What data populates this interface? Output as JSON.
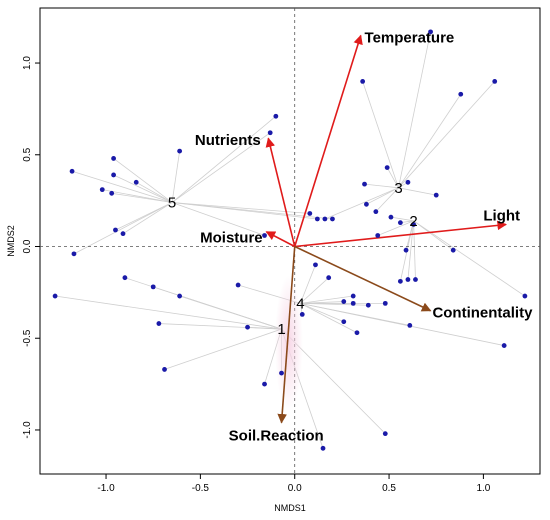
{
  "chart_data": {
    "type": "scatter",
    "title": "",
    "xlabel": "NMDS1",
    "ylabel": "NMDS2",
    "xlim": [
      -1.35,
      1.3
    ],
    "ylim": [
      -1.24,
      1.3
    ],
    "xticks": [
      -1.0,
      -0.5,
      0.0,
      0.5,
      1.0
    ],
    "xtick_labels": [
      "-1.0",
      "-0.5",
      "0.0",
      "0.5",
      "1.0"
    ],
    "yticks": [
      -1.0,
      -0.5,
      0.0,
      0.5,
      1.0
    ],
    "ytick_labels": [
      "-1.0",
      "-0.5",
      "0.0",
      "0.5",
      "1.0"
    ],
    "grid": false,
    "zero_lines": true,
    "point_color": "#1a1aa8",
    "spider_color": "#cfcfcf",
    "centroids": [
      {
        "label": "1",
        "x": -0.07,
        "y": -0.45
      },
      {
        "label": "2",
        "x": 0.63,
        "y": 0.14
      },
      {
        "label": "3",
        "x": 0.55,
        "y": 0.32
      },
      {
        "label": "4",
        "x": 0.03,
        "y": -0.31
      },
      {
        "label": "5",
        "x": -0.65,
        "y": 0.24
      }
    ],
    "sites": [
      {
        "x": 0.72,
        "y": 1.17,
        "group": "3"
      },
      {
        "x": 0.36,
        "y": 0.9,
        "group": "3"
      },
      {
        "x": 1.06,
        "y": 0.9,
        "group": "3"
      },
      {
        "x": 0.88,
        "y": 0.83,
        "group": "3"
      },
      {
        "x": 0.49,
        "y": 0.43,
        "group": "3"
      },
      {
        "x": 0.37,
        "y": 0.34,
        "group": "3"
      },
      {
        "x": 0.6,
        "y": 0.35,
        "group": "3"
      },
      {
        "x": 0.75,
        "y": 0.28,
        "group": "3"
      },
      {
        "x": 0.38,
        "y": 0.23,
        "group": "3"
      },
      {
        "x": 0.16,
        "y": 0.15,
        "group": "3"
      },
      {
        "x": 0.43,
        "y": 0.19,
        "group": "3"
      },
      {
        "x": 0.51,
        "y": 0.16,
        "group": "2"
      },
      {
        "x": 0.56,
        "y": 0.13,
        "group": "2"
      },
      {
        "x": 0.63,
        "y": 0.12,
        "group": "2"
      },
      {
        "x": 0.44,
        "y": 0.06,
        "group": "2"
      },
      {
        "x": 0.84,
        "y": -0.02,
        "group": "2"
      },
      {
        "x": 0.59,
        "y": -0.02,
        "group": "2"
      },
      {
        "x": 0.64,
        "y": -0.18,
        "group": "2"
      },
      {
        "x": 0.6,
        "y": -0.18,
        "group": "2"
      },
      {
        "x": 0.56,
        "y": -0.19,
        "group": "2"
      },
      {
        "x": 1.22,
        "y": -0.27,
        "group": "2"
      },
      {
        "x": 0.12,
        "y": 0.15,
        "group": "5"
      },
      {
        "x": 0.08,
        "y": 0.18,
        "group": "5"
      },
      {
        "x": 0.2,
        "y": 0.15,
        "group": "5"
      },
      {
        "x": -0.1,
        "y": 0.71,
        "group": "5"
      },
      {
        "x": -0.13,
        "y": 0.62,
        "group": "5"
      },
      {
        "x": -0.61,
        "y": 0.52,
        "group": "5"
      },
      {
        "x": -0.96,
        "y": 0.48,
        "group": "5"
      },
      {
        "x": -0.96,
        "y": 0.39,
        "group": "5"
      },
      {
        "x": -1.18,
        "y": 0.41,
        "group": "5"
      },
      {
        "x": -0.84,
        "y": 0.35,
        "group": "5"
      },
      {
        "x": -1.02,
        "y": 0.31,
        "group": "5"
      },
      {
        "x": -0.97,
        "y": 0.29,
        "group": "5"
      },
      {
        "x": -0.95,
        "y": 0.09,
        "group": "5"
      },
      {
        "x": -0.91,
        "y": 0.07,
        "group": "5"
      },
      {
        "x": -1.17,
        "y": -0.04,
        "group": "5"
      },
      {
        "x": -0.16,
        "y": 0.06,
        "group": "5"
      },
      {
        "x": 0.11,
        "y": -0.1,
        "group": "4"
      },
      {
        "x": 0.18,
        "y": -0.17,
        "group": "4"
      },
      {
        "x": -0.3,
        "y": -0.21,
        "group": "4"
      },
      {
        "x": 0.26,
        "y": -0.3,
        "group": "4"
      },
      {
        "x": 0.31,
        "y": -0.27,
        "group": "4"
      },
      {
        "x": 0.31,
        "y": -0.31,
        "group": "4"
      },
      {
        "x": 0.48,
        "y": -0.31,
        "group": "4"
      },
      {
        "x": 0.39,
        "y": -0.32,
        "group": "4"
      },
      {
        "x": 0.04,
        "y": -0.37,
        "group": "4"
      },
      {
        "x": 0.61,
        "y": -0.43,
        "group": "4"
      },
      {
        "x": 0.26,
        "y": -0.41,
        "group": "4"
      },
      {
        "x": 0.33,
        "y": -0.47,
        "group": "4"
      },
      {
        "x": 1.11,
        "y": -0.54,
        "group": "4"
      },
      {
        "x": -1.27,
        "y": -0.27,
        "group": "1"
      },
      {
        "x": -0.9,
        "y": -0.17,
        "group": "1"
      },
      {
        "x": -0.75,
        "y": -0.22,
        "group": "1"
      },
      {
        "x": -0.61,
        "y": -0.27,
        "group": "1"
      },
      {
        "x": -0.72,
        "y": -0.42,
        "group": "1"
      },
      {
        "x": -0.25,
        "y": -0.44,
        "group": "1"
      },
      {
        "x": -0.69,
        "y": -0.67,
        "group": "1"
      },
      {
        "x": -0.16,
        "y": -0.75,
        "group": "1"
      },
      {
        "x": -0.07,
        "y": -0.69,
        "group": "1"
      },
      {
        "x": 0.48,
        "y": -1.02,
        "group": "1"
      },
      {
        "x": 0.15,
        "y": -1.1,
        "group": "1"
      }
    ],
    "vectors": [
      {
        "label": "Temperature",
        "x": 0.35,
        "y": 1.15,
        "color": "#e01b1b",
        "label_x": 0.37,
        "label_y": 1.14,
        "anchor": "start"
      },
      {
        "label": "Nutrients",
        "x": -0.14,
        "y": 0.59,
        "color": "#e01b1b",
        "label_x": -0.18,
        "label_y": 0.58,
        "anchor": "end"
      },
      {
        "label": "Moisture",
        "x": -0.15,
        "y": 0.08,
        "color": "#e01b1b",
        "label_x": -0.17,
        "label_y": 0.05,
        "anchor": "end"
      },
      {
        "label": "Light",
        "x": 1.12,
        "y": 0.12,
        "color": "#e01b1b",
        "label_x": 1.0,
        "label_y": 0.17,
        "anchor": "start"
      },
      {
        "label": "Continentality",
        "x": 0.72,
        "y": -0.35,
        "color": "#8b4a1b",
        "label_x": 0.73,
        "label_y": -0.36,
        "anchor": "start"
      },
      {
        "label": "Soil.Reaction",
        "x": -0.07,
        "y": -0.96,
        "color": "#8b4a1b",
        "label_x": -0.35,
        "label_y": -1.03,
        "anchor": "start"
      }
    ]
  }
}
